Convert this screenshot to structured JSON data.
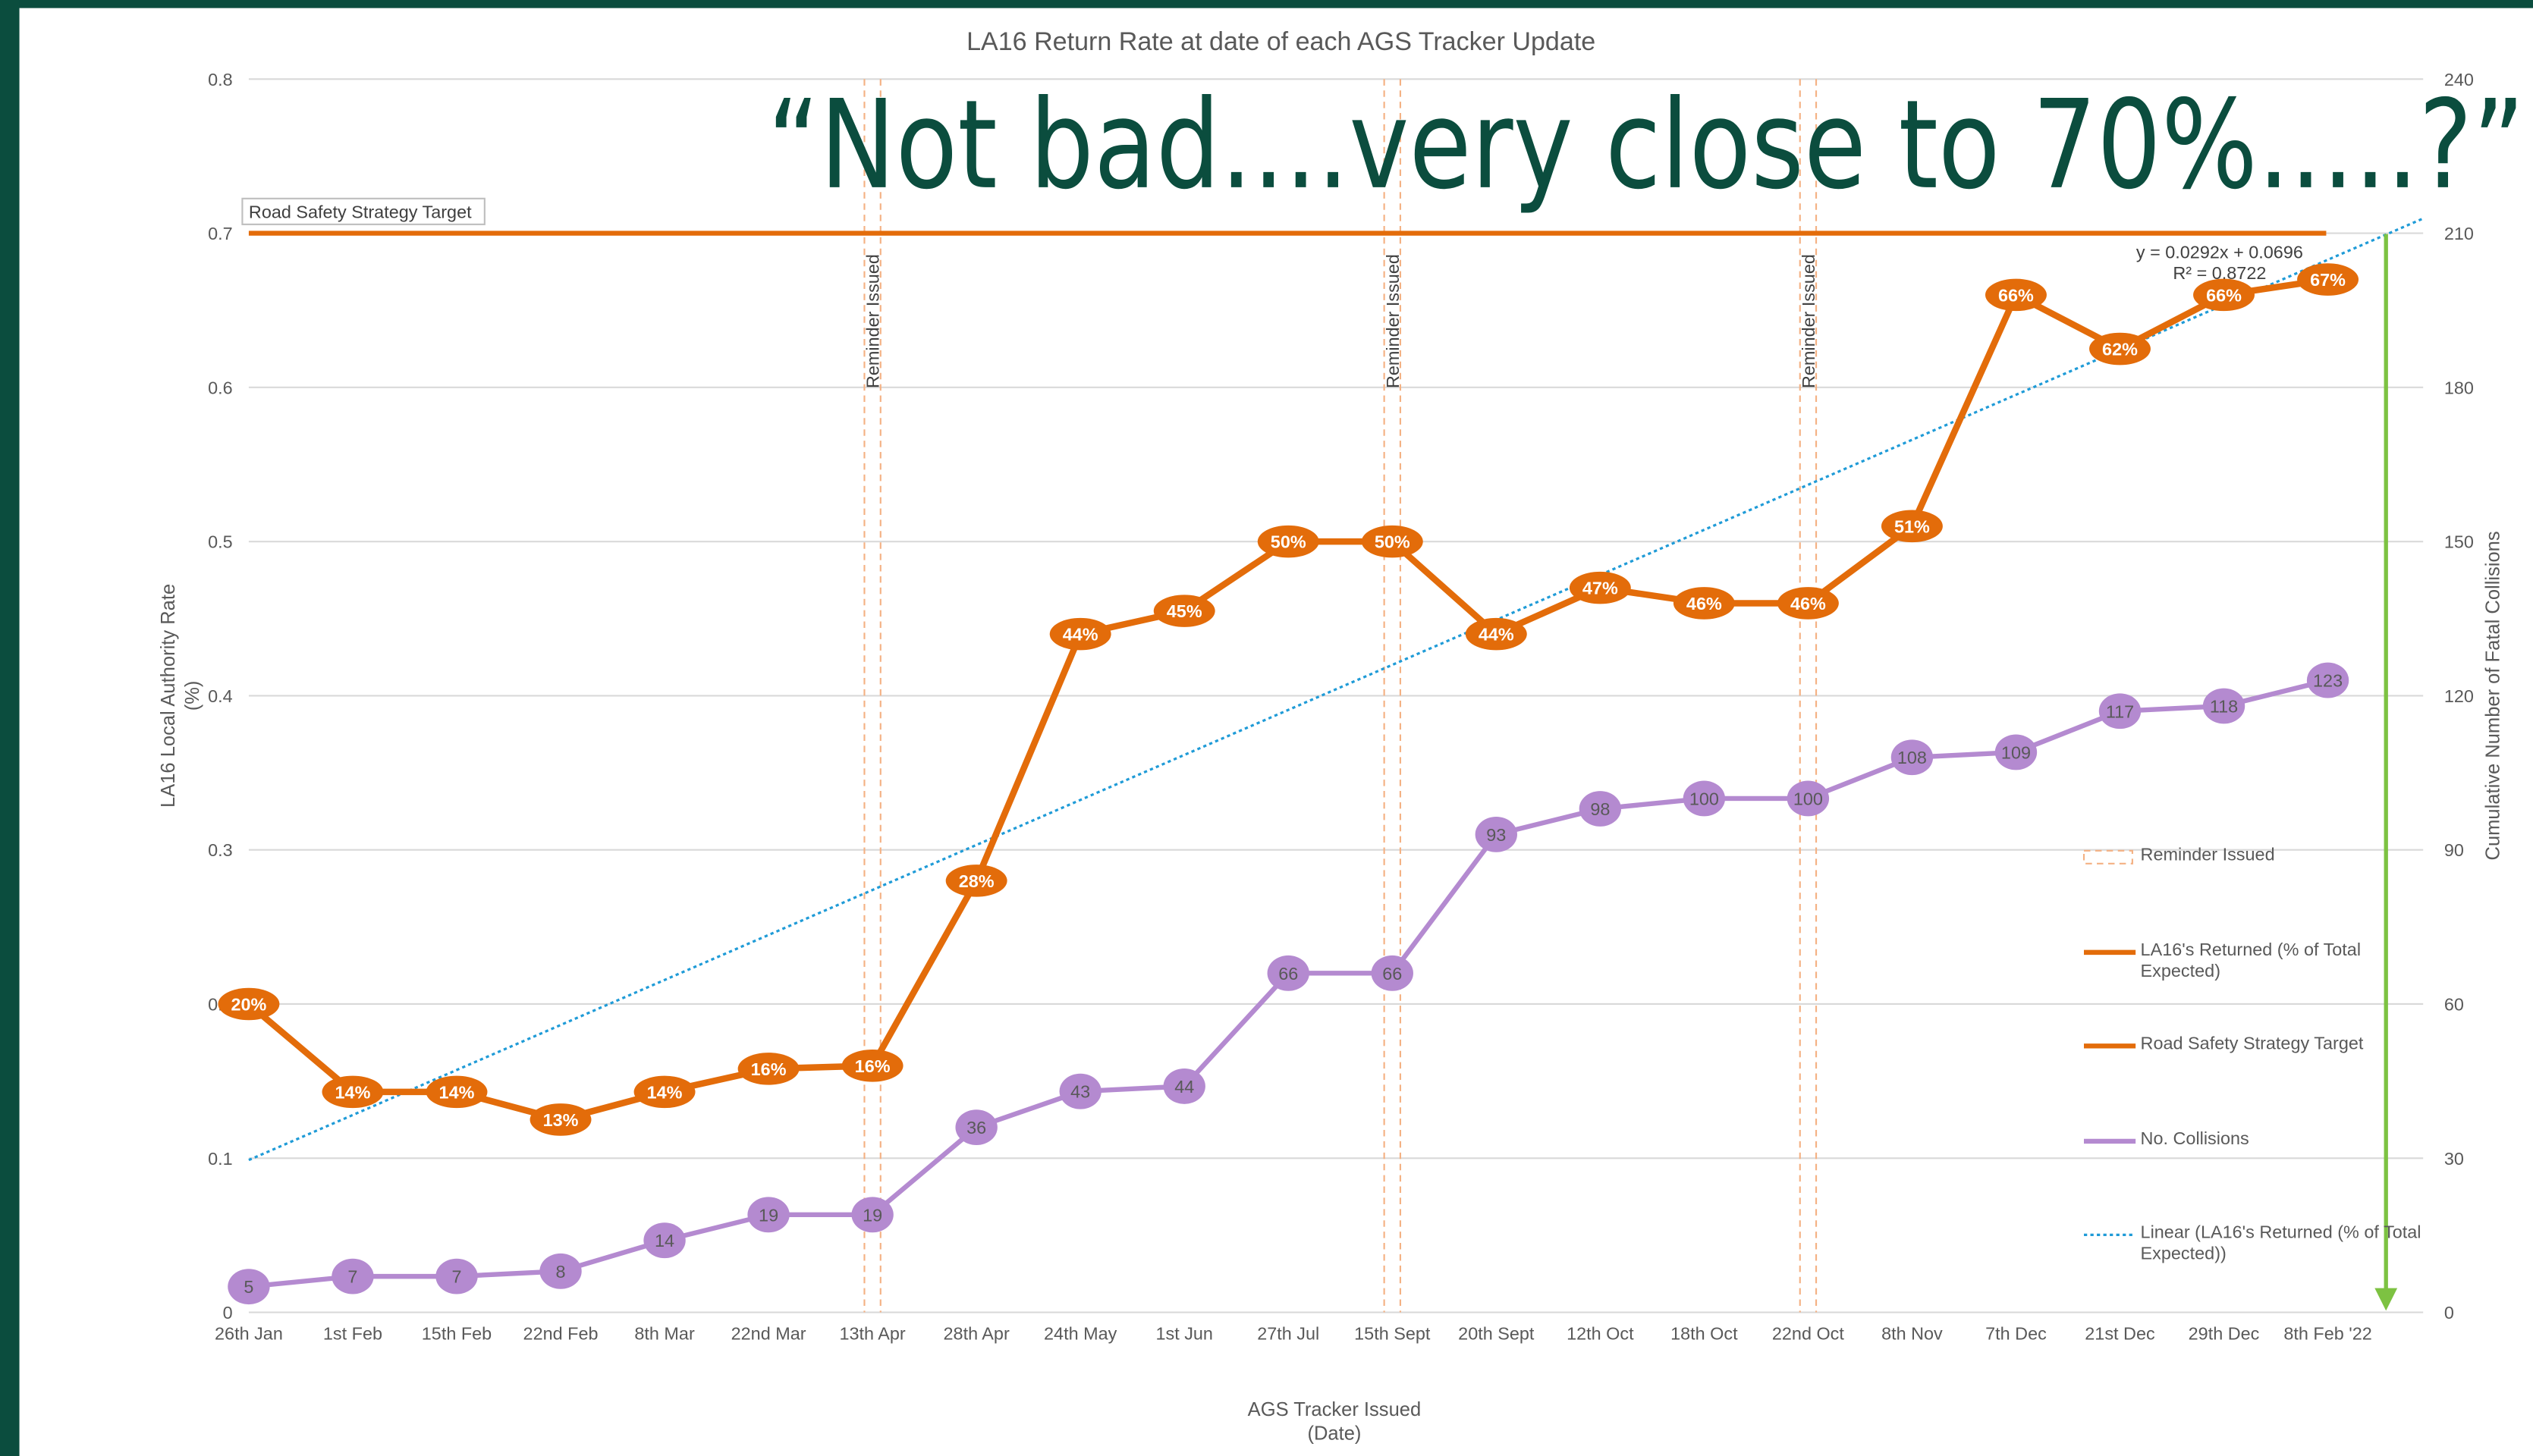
{
  "chart_data": {
    "type": "line",
    "title": "LA16 Return Rate at date of each AGS Tracker Update",
    "quote": "“Not bad....very close to 70%.....?”",
    "x_label": [
      "AGS Tracker Issued",
      "(Date)"
    ],
    "y_label": [
      "LA16 Local Authority Rate",
      "(%)"
    ],
    "y2_label": "Cumulative Number of Fatal Collisions",
    "categories": [
      "26th Jan",
      "1st Feb",
      "15th Feb",
      "22nd Feb",
      "8th Mar",
      "22nd Mar",
      "13th Apr",
      "28th Apr",
      "24th May",
      "1st Jun",
      "27th Jul",
      "15th Sept",
      "20th Sept",
      "12th Oct",
      "18th Oct",
      "22nd Oct",
      "8th Nov",
      "7th Dec",
      "21st Dec",
      "29th Dec",
      "8th Feb '22"
    ],
    "series": [
      {
        "name": "LA16's Returned (% of Total Expected)",
        "color": "#e36c0a",
        "values": [
          0.2,
          0.143,
          0.143,
          0.125,
          0.143,
          0.158,
          0.16,
          0.28,
          0.44,
          0.455,
          0.5,
          0.5,
          0.44,
          0.47,
          0.46,
          0.46,
          0.51,
          0.66,
          0.625,
          0.66,
          0.67
        ],
        "value_labels": [
          "20%",
          "14%",
          "14%",
          "13%",
          "14%",
          "16%",
          "16%",
          "28%",
          "44%",
          "45%",
          "50%",
          "50%",
          "44%",
          "47%",
          "46%",
          "46%",
          "51%",
          "66%",
          "62%",
          "66%",
          "67%"
        ]
      },
      {
        "name": "No. Collisions",
        "color": "#b48ad0",
        "axis": "y2",
        "values": [
          5,
          7,
          7,
          8,
          14,
          19,
          19,
          36,
          43,
          44,
          66,
          66,
          93,
          98,
          100,
          100,
          108,
          109,
          117,
          118,
          123
        ]
      }
    ],
    "target": {
      "name": "Road Safety Strategy Target",
      "value": 0.7,
      "color": "#e36c0a"
    },
    "trendline": {
      "name": "Linear (LA16's Returned (% of Total Expected))",
      "color": "#1f9bd7",
      "equation": "y = 0.0292x + 0.0696",
      "slope": 0.0292,
      "intercept": 0.0696,
      "r2": "R² = 0.8722"
    },
    "reminders": {
      "name": "Reminder Issued",
      "categories": [
        "13th Apr",
        "15th Sept",
        "22nd Oct"
      ],
      "color": "#f4b183"
    },
    "ylim": [
      0,
      0.8
    ],
    "yticks": [
      0,
      0.1,
      0.2,
      0.3,
      0.4,
      0.5,
      0.6,
      0.7,
      0.8
    ],
    "y2lim": [
      0,
      240
    ],
    "y2ticks": [
      0,
      30,
      60,
      90,
      120,
      150,
      180,
      210,
      240
    ],
    "grid": true
  }
}
